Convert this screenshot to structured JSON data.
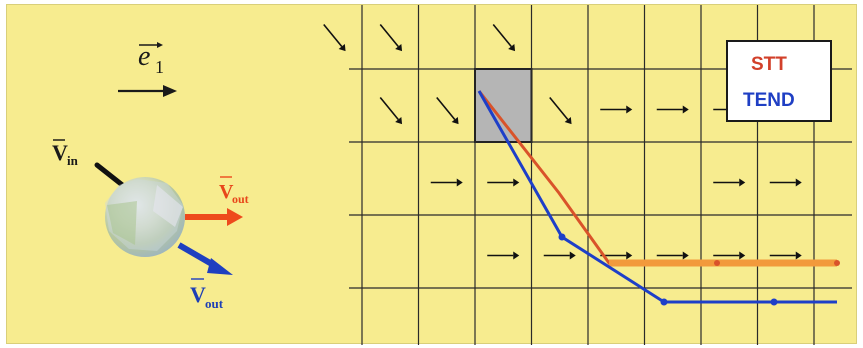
{
  "left_panel": {
    "basis_vector_label": "e",
    "basis_vector_subscript": "1",
    "v_in": {
      "base": "V",
      "sub": "in"
    },
    "v_out_red": {
      "base": "V",
      "sub": "out"
    },
    "v_out_blue": {
      "base": "V",
      "sub": "out"
    }
  },
  "legend": {
    "items": [
      {
        "label": "STT",
        "color": "#d2402a"
      },
      {
        "label": "TEND",
        "color": "#1f3fc4"
      }
    ]
  },
  "grid": {
    "columns": 9,
    "rows": 5,
    "highlighted_cell": [
      2,
      1
    ],
    "arrow_fields": [
      {
        "direction": "diagonal",
        "cells": [
          [
            0,
            0
          ],
          [
            1,
            0
          ],
          [
            2,
            0
          ],
          [
            0,
            1
          ],
          [
            1,
            1
          ],
          [
            3,
            1
          ],
          [
            1,
            2
          ],
          [
            2,
            2
          ],
          [
            4,
            2
          ]
        ]
      },
      {
        "direction": "horizontal",
        "cells": [
          [
            5,
            2
          ],
          [
            6,
            2
          ],
          [
            7,
            2
          ],
          [
            8,
            2
          ],
          [
            2,
            3
          ],
          [
            3,
            3
          ],
          [
            7,
            3
          ],
          [
            8,
            3
          ],
          [
            3,
            4
          ],
          [
            4,
            4
          ],
          [
            5,
            4
          ],
          [
            6,
            4
          ],
          [
            7,
            4
          ],
          [
            8,
            4
          ]
        ]
      }
    ]
  },
  "colors": {
    "background": "#f7ec8f",
    "grid_line": "#2a2a2a",
    "stt_line": "#d9532a",
    "stt_thick": "#f29a3c",
    "tend_line": "#1e3fc8",
    "highlight_cell": "#b5b5b5"
  }
}
